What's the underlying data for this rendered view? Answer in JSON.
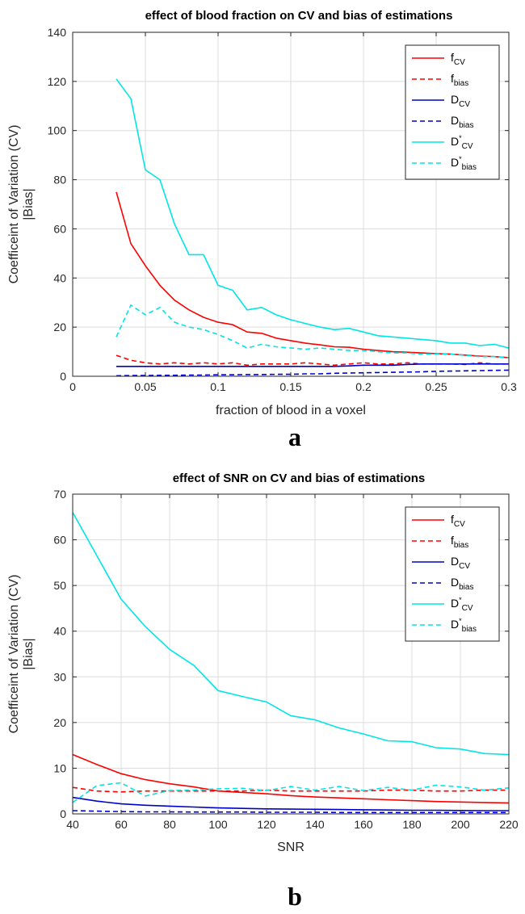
{
  "chart_data": [
    {
      "panel_label": "a",
      "type": "line",
      "title": "effect of blood fraction on  CV and bias of estimations",
      "xlabel": "fraction of blood in a voxel",
      "ylabel": [
        "Coefficeint of Variation (CV)",
        "|Bias|"
      ],
      "xlim": [
        0,
        0.3
      ],
      "ylim": [
        0,
        140
      ],
      "xticks": [
        0,
        0.05,
        0.1,
        0.15,
        0.2,
        0.25,
        0.3
      ],
      "xtick_labels": [
        "0",
        "0.05",
        "0.1",
        "0.15",
        "0.2",
        "0.25",
        "0.3"
      ],
      "yticks": [
        0,
        20,
        40,
        60,
        80,
        100,
        120,
        140
      ],
      "ytick_labels": [
        "0",
        "20",
        "40",
        "60",
        "80",
        "100",
        "120",
        "140"
      ],
      "grid": true,
      "legend_position": "top-right",
      "x": [
        0.03,
        0.04,
        0.05,
        0.06,
        0.07,
        0.08,
        0.09,
        0.1,
        0.11,
        0.12,
        0.13,
        0.14,
        0.15,
        0.16,
        0.17,
        0.18,
        0.19,
        0.2,
        0.21,
        0.22,
        0.23,
        0.24,
        0.25,
        0.26,
        0.27,
        0.28,
        0.29,
        0.3
      ],
      "series": [
        {
          "name": "f",
          "sub": "CV",
          "sup": "",
          "color": "#ff0000",
          "dash": false,
          "values": [
            75,
            54,
            45,
            37,
            31,
            27,
            24,
            22,
            21,
            18,
            17.5,
            15.5,
            14.5,
            13.5,
            12.8,
            12,
            11.8,
            11,
            10.5,
            10,
            9.8,
            9.5,
            9.2,
            9,
            8.6,
            8.2,
            8,
            7.6
          ]
        },
        {
          "name": "f",
          "sub": "bias",
          "sup": "",
          "color": "#ff0000",
          "dash": true,
          "values": [
            8.5,
            6.5,
            5.5,
            5,
            5.5,
            5,
            5.5,
            5,
            5.5,
            4.5,
            5,
            5,
            5,
            5.5,
            5,
            4.5,
            5,
            5.5,
            5,
            5,
            5.5,
            5,
            5,
            5,
            4.8,
            5.5,
            5,
            5
          ]
        },
        {
          "name": "D",
          "sub": "CV",
          "sup": "",
          "color": "#0000cd",
          "dash": false,
          "values": [
            4,
            4,
            4,
            4,
            4,
            4,
            4,
            4,
            4,
            4,
            4,
            4,
            4,
            4,
            4,
            4,
            4.2,
            4.5,
            4.5,
            4.5,
            4.8,
            5,
            5,
            5,
            5,
            5,
            5,
            5
          ]
        },
        {
          "name": "D",
          "sub": "bias",
          "sup": "",
          "color": "#0000cd",
          "dash": true,
          "values": [
            0.2,
            0.3,
            0.3,
            0.4,
            0.4,
            0.5,
            0.5,
            0.6,
            0.6,
            0.7,
            0.7,
            0.8,
            0.8,
            1,
            1,
            1.2,
            1.3,
            1.4,
            1.5,
            1.6,
            1.7,
            1.8,
            2,
            2.1,
            2.2,
            2.3,
            2.4,
            2.5
          ]
        },
        {
          "name": "D",
          "sub": "CV",
          "sup": "*",
          "color": "#00e5e5",
          "dash": false,
          "values": [
            121,
            113,
            84,
            80,
            62,
            49.5,
            49.5,
            37,
            35,
            27,
            28,
            25,
            23,
            21.5,
            20,
            19,
            19.5,
            18,
            16.5,
            16,
            15.5,
            15,
            14.5,
            13.5,
            13.5,
            12.5,
            13,
            11.5
          ]
        },
        {
          "name": "D",
          "sub": "bias",
          "sup": "*",
          "color": "#00e5e5",
          "dash": true,
          "values": [
            16,
            29,
            25,
            28,
            22,
            20,
            19,
            17,
            14.5,
            11.5,
            13,
            12,
            11.5,
            11,
            11.5,
            11,
            10.5,
            10.5,
            10,
            9.5,
            9.5,
            9,
            9,
            9,
            8.5,
            8,
            8,
            7.5
          ]
        }
      ]
    },
    {
      "panel_label": "b",
      "type": "line",
      "title": "effect of SNR on  CV and bias of estimations",
      "xlabel": "SNR",
      "ylabel": [
        "Coefficeint of Variation (CV)",
        "|Bias|"
      ],
      "xlim": [
        40,
        220
      ],
      "ylim": [
        0,
        70
      ],
      "xticks": [
        40,
        60,
        80,
        100,
        120,
        140,
        160,
        180,
        200,
        220
      ],
      "xtick_labels": [
        "40",
        "60",
        "80",
        "100",
        "120",
        "140",
        "160",
        "180",
        "200",
        "220"
      ],
      "yticks": [
        0,
        10,
        20,
        30,
        40,
        50,
        60,
        70
      ],
      "ytick_labels": [
        "0",
        "10",
        "20",
        "30",
        "40",
        "50",
        "60",
        "70"
      ],
      "grid": true,
      "legend_position": "top-right",
      "x": [
        40,
        50,
        60,
        70,
        80,
        90,
        100,
        110,
        120,
        130,
        140,
        150,
        160,
        170,
        180,
        190,
        200,
        210,
        220
      ],
      "series": [
        {
          "name": "f",
          "sub": "CV",
          "sup": "",
          "color": "#ff0000",
          "dash": false,
          "values": [
            13,
            10.8,
            8.8,
            7.5,
            6.6,
            5.9,
            5,
            4.7,
            4.4,
            4,
            3.7,
            3.5,
            3.3,
            3.1,
            2.9,
            2.7,
            2.6,
            2.5,
            2.4
          ]
        },
        {
          "name": "f",
          "sub": "bias",
          "sup": "",
          "color": "#ff0000",
          "dash": true,
          "values": [
            5.8,
            5,
            4.8,
            5,
            5,
            5,
            5,
            5,
            5.2,
            5,
            5,
            5,
            5,
            5.2,
            5.2,
            5,
            5,
            5.2,
            5.2
          ]
        },
        {
          "name": "D",
          "sub": "CV",
          "sup": "",
          "color": "#0000cd",
          "dash": false,
          "values": [
            3.6,
            2.8,
            2.2,
            1.9,
            1.7,
            1.5,
            1.3,
            1.2,
            1.1,
            1.05,
            1,
            0.95,
            0.9,
            0.85,
            0.8,
            0.8,
            0.75,
            0.7,
            0.7
          ]
        },
        {
          "name": "D",
          "sub": "bias",
          "sup": "",
          "color": "#0000cd",
          "dash": true,
          "values": [
            0.7,
            0.6,
            0.5,
            0.45,
            0.45,
            0.4,
            0.4,
            0.4,
            0.35,
            0.35,
            0.35,
            0.3,
            0.3,
            0.3,
            0.3,
            0.3,
            0.3,
            0.3,
            0.3
          ]
        },
        {
          "name": "D",
          "sub": "CV",
          "sup": "*",
          "color": "#00e5e5",
          "dash": false,
          "values": [
            66,
            56.5,
            47,
            41,
            36,
            32.5,
            27,
            25.7,
            24.5,
            21.5,
            20.6,
            18.8,
            17.5,
            16,
            15.8,
            14.5,
            14.2,
            13.2,
            13
          ]
        },
        {
          "name": "D",
          "sub": "bias",
          "sup": "*",
          "color": "#00e5e5",
          "dash": true,
          "values": [
            2.5,
            6.2,
            6.8,
            3.9,
            5.1,
            5.2,
            5.5,
            5.6,
            5.1,
            6,
            5.2,
            6,
            5.1,
            5.8,
            5.2,
            6.3,
            5.9,
            5.2,
            5.7
          ]
        }
      ]
    }
  ]
}
